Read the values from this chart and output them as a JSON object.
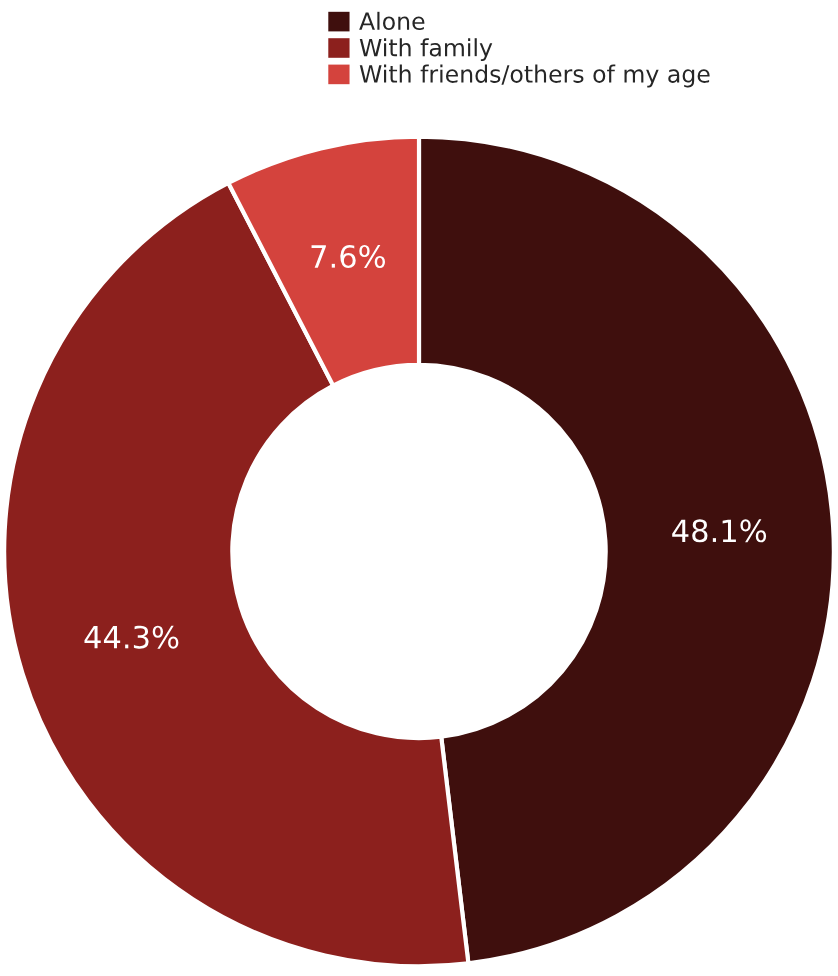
{
  "chart_data": {
    "type": "donut",
    "categories": [
      "Alone",
      "With family",
      "With friends/others of my age"
    ],
    "values": [
      48.1,
      44.3,
      7.6
    ],
    "colors": [
      "#3f0f0d",
      "#8c201d",
      "#d4433d"
    ],
    "value_labels": [
      "48.1%",
      "44.3%",
      "7.6%"
    ],
    "legend": "top"
  }
}
